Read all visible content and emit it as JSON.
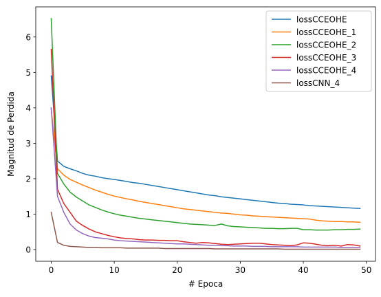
{
  "chart_data": {
    "type": "line",
    "title": "",
    "xlabel": "# Epoca",
    "ylabel": "Magnitud de Perdida",
    "xlim": [
      -2.45,
      51.45
    ],
    "ylim": [
      -0.33,
      6.85
    ],
    "xticks": [
      0,
      10,
      20,
      30,
      40,
      50
    ],
    "yticks": [
      0,
      1,
      2,
      3,
      4,
      5,
      6
    ],
    "grid": false,
    "legend_position": "top-right",
    "x": [
      0,
      1,
      2,
      3,
      4,
      5,
      6,
      7,
      8,
      9,
      10,
      11,
      12,
      13,
      14,
      15,
      16,
      17,
      18,
      19,
      20,
      21,
      22,
      23,
      24,
      25,
      26,
      27,
      28,
      29,
      30,
      31,
      32,
      33,
      34,
      35,
      36,
      37,
      38,
      39,
      40,
      41,
      42,
      43,
      44,
      45,
      46,
      47,
      48,
      49
    ],
    "series": [
      {
        "name": "lossCCEOHE",
        "color": "#1f77b4",
        "values": [
          4.9,
          2.5,
          2.35,
          2.28,
          2.22,
          2.15,
          2.1,
          2.07,
          2.03,
          2.0,
          1.98,
          1.95,
          1.92,
          1.89,
          1.87,
          1.84,
          1.81,
          1.78,
          1.75,
          1.72,
          1.69,
          1.66,
          1.63,
          1.6,
          1.57,
          1.54,
          1.52,
          1.49,
          1.47,
          1.45,
          1.43,
          1.41,
          1.39,
          1.37,
          1.35,
          1.33,
          1.31,
          1.3,
          1.28,
          1.27,
          1.26,
          1.24,
          1.23,
          1.22,
          1.21,
          1.2,
          1.19,
          1.18,
          1.17,
          1.16
        ]
      },
      {
        "name": "lossCCEOHE_1",
        "color": "#ff7f0e",
        "values": [
          3.97,
          2.28,
          2.1,
          1.98,
          1.9,
          1.82,
          1.75,
          1.68,
          1.62,
          1.56,
          1.51,
          1.47,
          1.43,
          1.4,
          1.36,
          1.33,
          1.3,
          1.27,
          1.24,
          1.21,
          1.18,
          1.15,
          1.13,
          1.11,
          1.09,
          1.07,
          1.05,
          1.03,
          1.02,
          1.0,
          0.98,
          0.97,
          0.95,
          0.94,
          0.93,
          0.92,
          0.91,
          0.9,
          0.89,
          0.88,
          0.87,
          0.86,
          0.83,
          0.81,
          0.8,
          0.79,
          0.79,
          0.78,
          0.78,
          0.77
        ]
      },
      {
        "name": "lossCCEOHE_2",
        "color": "#2ca02c",
        "values": [
          6.52,
          2.15,
          1.85,
          1.62,
          1.48,
          1.37,
          1.26,
          1.19,
          1.12,
          1.06,
          1.01,
          0.97,
          0.94,
          0.91,
          0.88,
          0.86,
          0.84,
          0.82,
          0.8,
          0.78,
          0.76,
          0.74,
          0.72,
          0.71,
          0.7,
          0.69,
          0.68,
          0.72,
          0.67,
          0.65,
          0.64,
          0.63,
          0.62,
          0.61,
          0.6,
          0.6,
          0.59,
          0.59,
          0.6,
          0.6,
          0.56,
          0.56,
          0.55,
          0.55,
          0.55,
          0.56,
          0.56,
          0.57,
          0.57,
          0.58
        ]
      },
      {
        "name": "lossCCEOHE_3",
        "color": "#d62728",
        "values": [
          5.65,
          1.7,
          1.3,
          1.05,
          0.8,
          0.68,
          0.58,
          0.5,
          0.45,
          0.4,
          0.36,
          0.33,
          0.31,
          0.3,
          0.28,
          0.27,
          0.27,
          0.26,
          0.26,
          0.25,
          0.25,
          0.22,
          0.2,
          0.18,
          0.2,
          0.19,
          0.17,
          0.15,
          0.14,
          0.15,
          0.16,
          0.17,
          0.18,
          0.18,
          0.16,
          0.14,
          0.13,
          0.12,
          0.11,
          0.13,
          0.19,
          0.18,
          0.15,
          0.12,
          0.11,
          0.12,
          0.1,
          0.14,
          0.13,
          0.1
        ]
      },
      {
        "name": "lossCCEOHE_4",
        "color": "#9467bd",
        "values": [
          4.0,
          1.5,
          1.05,
          0.72,
          0.55,
          0.45,
          0.38,
          0.34,
          0.32,
          0.3,
          0.27,
          0.25,
          0.24,
          0.23,
          0.22,
          0.21,
          0.2,
          0.19,
          0.18,
          0.17,
          0.16,
          0.16,
          0.15,
          0.14,
          0.13,
          0.12,
          0.12,
          0.11,
          0.11,
          0.1,
          0.1,
          0.1,
          0.09,
          0.09,
          0.09,
          0.08,
          0.08,
          0.08,
          0.08,
          0.08,
          0.07,
          0.07,
          0.07,
          0.07,
          0.07,
          0.07,
          0.06,
          0.06,
          0.06,
          0.06
        ]
      },
      {
        "name": "lossCNN_4",
        "color": "#8c564b",
        "values": [
          1.05,
          0.2,
          0.12,
          0.09,
          0.08,
          0.07,
          0.06,
          0.06,
          0.05,
          0.05,
          0.05,
          0.05,
          0.04,
          0.04,
          0.04,
          0.04,
          0.04,
          0.04,
          0.03,
          0.03,
          0.03,
          0.03,
          0.03,
          0.03,
          0.03,
          0.03,
          0.02,
          0.02,
          0.02,
          0.02,
          0.02,
          0.02,
          0.02,
          0.02,
          0.02,
          0.02,
          0.02,
          0.01,
          0.01,
          0.01,
          0.01,
          0.01,
          0.01,
          0.01,
          0.01,
          0.01,
          0.01,
          0.01,
          0.01,
          0.01
        ]
      }
    ]
  }
}
